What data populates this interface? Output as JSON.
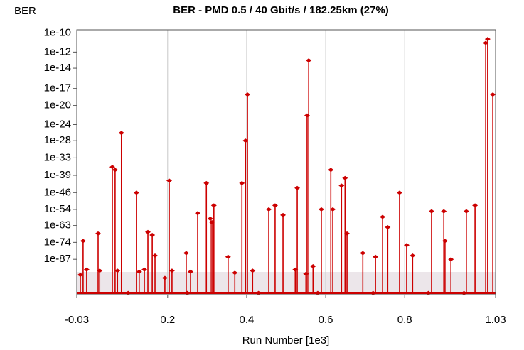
{
  "chart_data": {
    "type": "stem",
    "corner_label": "BER",
    "title": "BER - PMD 0.5 / 40 Gbit/s / 182.25km (27%)",
    "x_label": "Run Number [1e3]",
    "color": "#cc0000",
    "y_scale": "log-log",
    "grid": "x",
    "xlim": [
      -0.03,
      1.03
    ],
    "xticks": [
      -0.03,
      0.2,
      0.4,
      0.6,
      0.8,
      1.03
    ],
    "ylim": [
      1e-122,
      2e-10
    ],
    "yticks": [
      {
        "value": 1e-10,
        "label": "1e-10"
      },
      {
        "value": 1e-12,
        "label": "1e-12"
      },
      {
        "value": 1e-14,
        "label": "1e-14"
      },
      {
        "value": 1e-17,
        "label": "1e-17"
      },
      {
        "value": 1e-20,
        "label": "1e-20"
      },
      {
        "value": 1e-24,
        "label": "1e-24"
      },
      {
        "value": 1e-28,
        "label": "1e-28"
      },
      {
        "value": 1e-33,
        "label": "1e-33"
      },
      {
        "value": 1e-39,
        "label": "1e-39"
      },
      {
        "value": 1e-46,
        "label": "1e-46"
      },
      {
        "value": 1e-54,
        "label": "1e-54"
      },
      {
        "value": 1e-63,
        "label": "1e-63"
      },
      {
        "value": 1e-74,
        "label": "1e-74"
      },
      {
        "value": 1e-87,
        "label": "1e-87"
      }
    ],
    "x": [
      -0.021,
      -0.014,
      -0.005,
      0.024,
      0.028,
      0.06,
      0.067,
      0.073,
      0.083,
      0.121,
      0.128,
      0.141,
      0.15,
      0.161,
      0.168,
      0.193,
      0.204,
      0.211,
      0.247,
      0.258,
      0.276,
      0.298,
      0.308,
      0.312,
      0.317,
      0.353,
      0.37,
      0.388,
      0.397,
      0.402,
      0.415,
      0.456,
      0.472,
      0.492,
      0.523,
      0.528,
      0.55,
      0.553,
      0.557,
      0.568,
      0.589,
      0.613,
      0.618,
      0.64,
      0.649,
      0.654,
      0.694,
      0.726,
      0.744,
      0.757,
      0.787,
      0.805,
      0.82,
      0.868,
      0.899,
      0.902,
      0.917,
      0.956,
      0.978,
      1.005,
      1.01,
      1.023,
      0.1,
      0.25,
      0.43,
      0.58,
      0.72,
      0.86,
      0.95
    ],
    "values": [
      1e-101,
      1e-73,
      1e-96,
      1e-68,
      1e-97,
      1e-36,
      1e-37,
      1e-97,
      1e-26,
      1e-46,
      1e-98,
      1e-96,
      1e-67,
      1e-69,
      1e-84,
      1e-104,
      1e-41,
      1e-97,
      1e-82,
      1e-98,
      1e-56,
      1e-42,
      1e-59,
      1e-61,
      1e-52,
      1e-85,
      1e-99,
      1e-42,
      1e-28,
      1e-18,
      1e-97,
      1e-54,
      1e-52,
      1e-57,
      1e-96,
      1e-44,
      1e-100,
      1e-22,
      1e-13,
      1e-93,
      1e-54,
      1e-37,
      1e-54,
      1e-43,
      1e-40,
      1e-68,
      1e-82,
      1e-85,
      1e-58,
      1e-64,
      1e-46,
      1e-76,
      1e-84,
      1e-55,
      1e-55,
      1e-73,
      1e-87,
      1e-55,
      1e-52,
      1e-11,
      2.5e-11,
      1e-18,
      1e-120,
      1e-120,
      1e-120,
      1e-120,
      1e-120,
      1e-120,
      1e-120
    ]
  }
}
